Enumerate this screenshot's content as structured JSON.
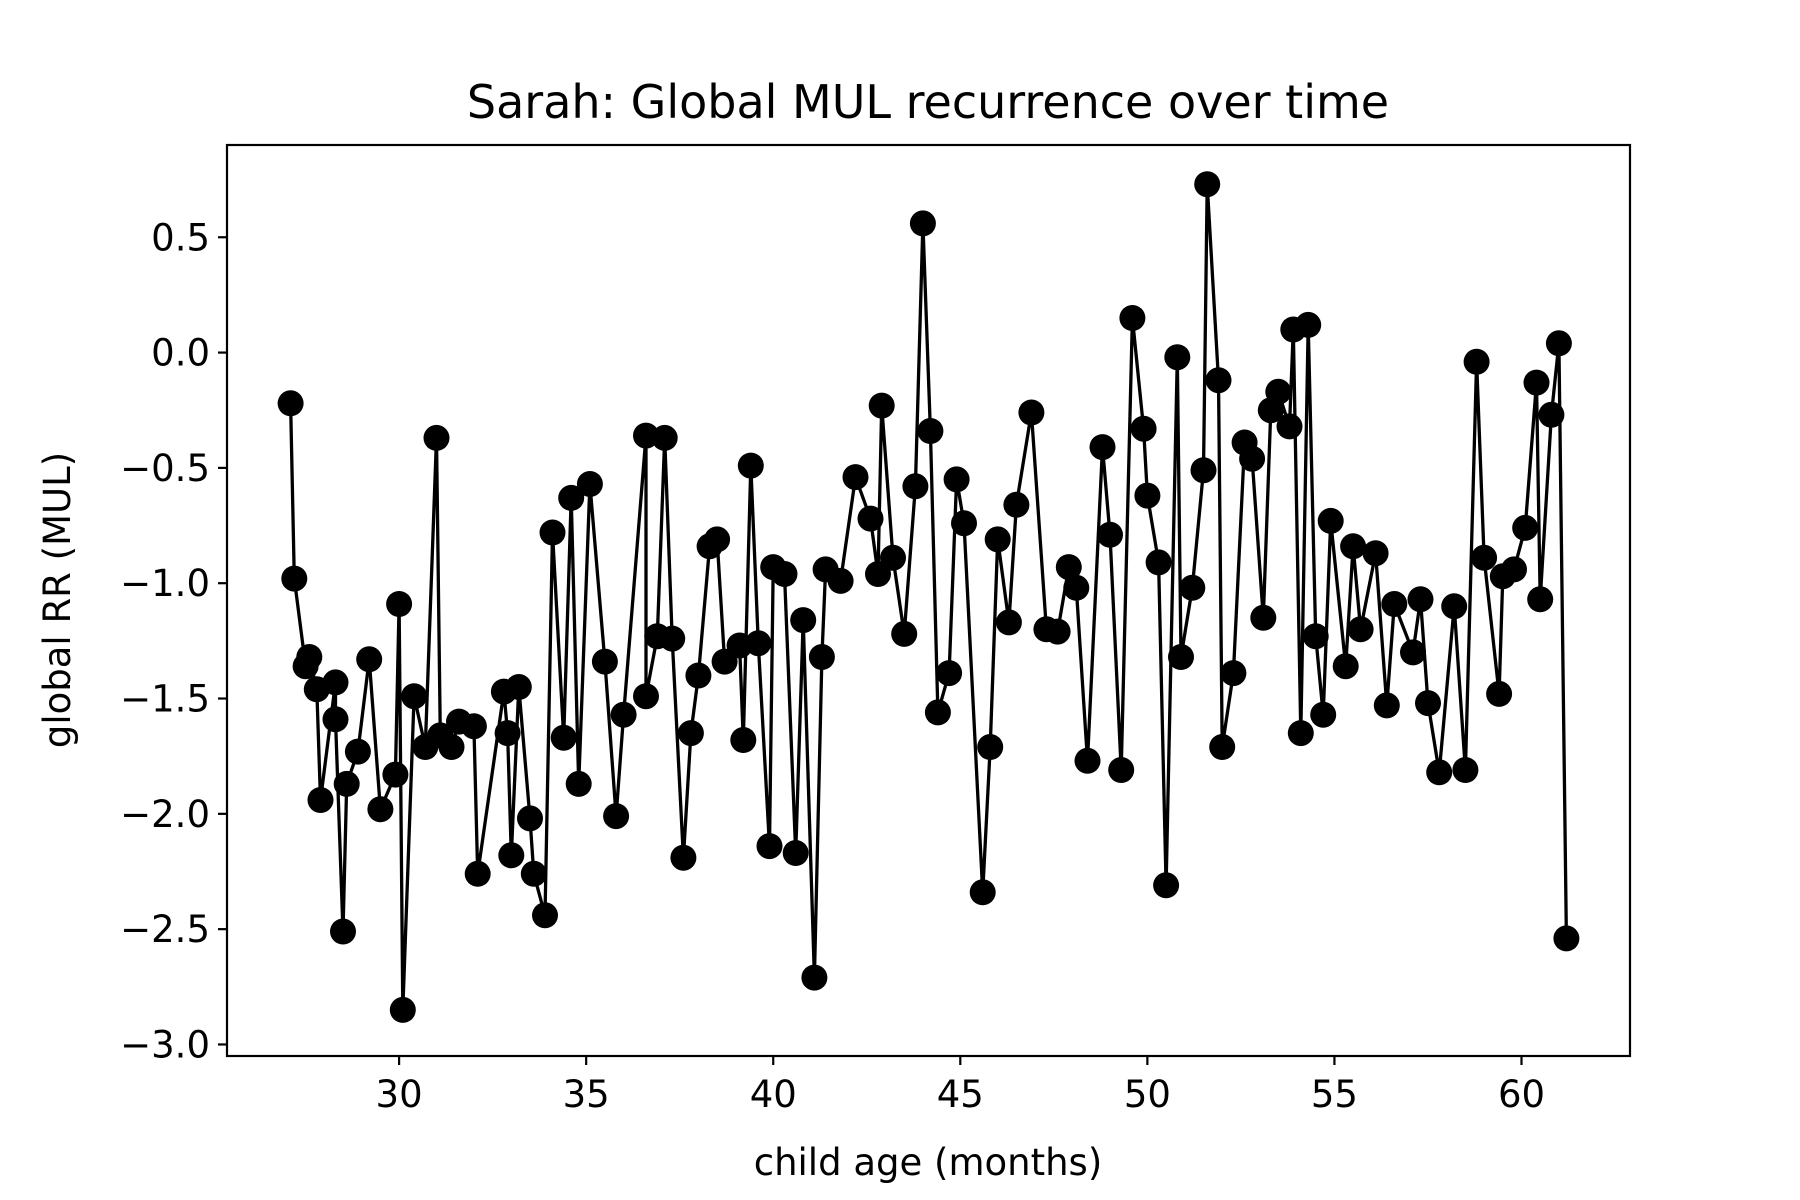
{
  "colors": {
    "line": "#000000",
    "marker": "#000000",
    "background": "#ffffff"
  },
  "chart_data": {
    "type": "line",
    "title": "Sarah: Global MUL recurrence over time",
    "xlabel": "child age (months)",
    "ylabel": "global RR (MUL)",
    "xlim": [
      25.4,
      62.9
    ],
    "ylim": [
      -3.05,
      0.9
    ],
    "xticks": [
      30,
      35,
      40,
      45,
      50,
      55,
      60
    ],
    "yticks": [
      -3.0,
      -2.5,
      -2.0,
      -1.5,
      -1.0,
      -0.5,
      0.0,
      0.5
    ],
    "xtick_labels": [
      "30",
      "35",
      "40",
      "45",
      "50",
      "55",
      "60"
    ],
    "ytick_labels": [
      "−3.0",
      "−2.5",
      "−2.0",
      "−1.5",
      "−1.0",
      "−0.5",
      "0.0",
      "0.5"
    ],
    "grid": false,
    "legend": "none",
    "markers": true,
    "series": [
      {
        "points": [
          [
            27.1,
            -0.22
          ],
          [
            27.2,
            -0.98
          ],
          [
            27.5,
            -1.36
          ],
          [
            27.6,
            -1.32
          ],
          [
            27.8,
            -1.46
          ],
          [
            27.9,
            -1.94
          ],
          [
            28.3,
            -1.43
          ],
          [
            28.3,
            -1.59
          ],
          [
            28.5,
            -2.51
          ],
          [
            28.6,
            -1.87
          ],
          [
            28.9,
            -1.73
          ],
          [
            29.2,
            -1.33
          ],
          [
            29.5,
            -1.98
          ],
          [
            29.9,
            -1.83
          ],
          [
            30.0,
            -1.09
          ],
          [
            30.1,
            -2.85
          ],
          [
            30.4,
            -1.49
          ],
          [
            30.7,
            -1.71
          ],
          [
            31.0,
            -0.37
          ],
          [
            31.1,
            -1.66
          ],
          [
            31.4,
            -1.71
          ],
          [
            31.6,
            -1.6
          ],
          [
            32.0,
            -1.62
          ],
          [
            32.1,
            -2.26
          ],
          [
            32.8,
            -1.47
          ],
          [
            32.9,
            -1.65
          ],
          [
            33.0,
            -2.18
          ],
          [
            33.2,
            -1.45
          ],
          [
            33.5,
            -2.02
          ],
          [
            33.6,
            -2.26
          ],
          [
            33.9,
            -2.44
          ],
          [
            34.1,
            -0.78
          ],
          [
            34.4,
            -1.67
          ],
          [
            34.6,
            -0.63
          ],
          [
            34.8,
            -1.87
          ],
          [
            35.1,
            -0.57
          ],
          [
            35.5,
            -1.34
          ],
          [
            35.8,
            -2.01
          ],
          [
            36.0,
            -1.57
          ],
          [
            36.6,
            -0.36
          ],
          [
            36.6,
            -1.49
          ],
          [
            36.9,
            -1.23
          ],
          [
            37.1,
            -0.37
          ],
          [
            37.3,
            -1.24
          ],
          [
            37.6,
            -2.19
          ],
          [
            37.8,
            -1.65
          ],
          [
            38.0,
            -1.4
          ],
          [
            38.3,
            -0.84
          ],
          [
            38.5,
            -0.81
          ],
          [
            38.7,
            -1.34
          ],
          [
            39.1,
            -1.27
          ],
          [
            39.2,
            -1.68
          ],
          [
            39.4,
            -0.49
          ],
          [
            39.6,
            -1.26
          ],
          [
            39.9,
            -2.14
          ],
          [
            40.0,
            -0.93
          ],
          [
            40.3,
            -0.96
          ],
          [
            40.6,
            -2.17
          ],
          [
            40.8,
            -1.16
          ],
          [
            41.1,
            -2.71
          ],
          [
            41.3,
            -1.32
          ],
          [
            41.4,
            -0.94
          ],
          [
            41.8,
            -0.99
          ],
          [
            42.2,
            -0.54
          ],
          [
            42.6,
            -0.72
          ],
          [
            42.8,
            -0.96
          ],
          [
            42.9,
            -0.23
          ],
          [
            43.2,
            -0.89
          ],
          [
            43.5,
            -1.22
          ],
          [
            43.8,
            -0.58
          ],
          [
            44.0,
            0.56
          ],
          [
            44.2,
            -0.34
          ],
          [
            44.4,
            -1.56
          ],
          [
            44.7,
            -1.39
          ],
          [
            44.9,
            -0.55
          ],
          [
            45.1,
            -0.74
          ],
          [
            45.6,
            -2.34
          ],
          [
            45.8,
            -1.71
          ],
          [
            46.0,
            -0.81
          ],
          [
            46.3,
            -1.17
          ],
          [
            46.5,
            -0.66
          ],
          [
            46.9,
            -0.26
          ],
          [
            47.3,
            -1.2
          ],
          [
            47.6,
            -1.21
          ],
          [
            47.9,
            -0.93
          ],
          [
            48.1,
            -1.02
          ],
          [
            48.4,
            -1.77
          ],
          [
            48.8,
            -0.41
          ],
          [
            49.0,
            -0.79
          ],
          [
            49.3,
            -1.81
          ],
          [
            49.6,
            0.15
          ],
          [
            49.9,
            -0.33
          ],
          [
            50.0,
            -0.62
          ],
          [
            50.3,
            -0.91
          ],
          [
            50.5,
            -2.31
          ],
          [
            50.8,
            -0.02
          ],
          [
            50.9,
            -1.32
          ],
          [
            51.2,
            -1.02
          ],
          [
            51.5,
            -0.51
          ],
          [
            51.6,
            0.73
          ],
          [
            51.9,
            -0.12
          ],
          [
            52.0,
            -1.71
          ],
          [
            52.3,
            -1.39
          ],
          [
            52.6,
            -0.39
          ],
          [
            52.8,
            -0.46
          ],
          [
            53.1,
            -1.15
          ],
          [
            53.3,
            -0.25
          ],
          [
            53.5,
            -0.17
          ],
          [
            53.8,
            -0.32
          ],
          [
            53.9,
            0.1
          ],
          [
            54.1,
            -1.65
          ],
          [
            54.3,
            0.12
          ],
          [
            54.5,
            -1.23
          ],
          [
            54.7,
            -1.57
          ],
          [
            54.9,
            -0.73
          ],
          [
            55.3,
            -1.36
          ],
          [
            55.5,
            -0.84
          ],
          [
            55.7,
            -1.2
          ],
          [
            56.1,
            -0.87
          ],
          [
            56.4,
            -1.53
          ],
          [
            56.6,
            -1.09
          ],
          [
            57.1,
            -1.3
          ],
          [
            57.3,
            -1.07
          ],
          [
            57.5,
            -1.52
          ],
          [
            57.8,
            -1.82
          ],
          [
            58.2,
            -1.1
          ],
          [
            58.5,
            -1.81
          ],
          [
            58.8,
            -0.04
          ],
          [
            59.0,
            -0.89
          ],
          [
            59.4,
            -1.48
          ],
          [
            59.5,
            -0.97
          ],
          [
            59.8,
            -0.94
          ],
          [
            60.1,
            -0.76
          ],
          [
            60.4,
            -0.13
          ],
          [
            60.5,
            -1.07
          ],
          [
            60.8,
            -0.27
          ],
          [
            61.0,
            0.04
          ],
          [
            61.2,
            -2.54
          ]
        ]
      }
    ]
  }
}
